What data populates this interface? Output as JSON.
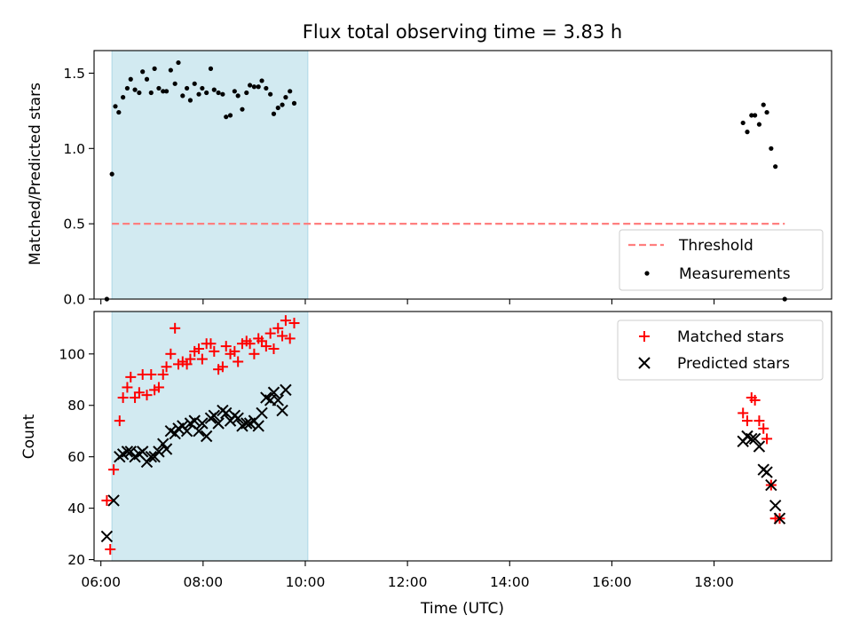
{
  "chart_data": {
    "title": "Flux total observing time = 3.83 h",
    "type": "scatter",
    "xlabel": "Time (UTC)",
    "x_ticks": [
      "06:00",
      "08:00",
      "10:00",
      "12:00",
      "14:00",
      "16:00",
      "18:00"
    ],
    "xlim": [
      "05:52",
      "20:18"
    ],
    "shaded_interval": {
      "start": "06:13",
      "end": "10:03",
      "color": "#add8e6"
    },
    "panels": [
      {
        "name": "ratio",
        "ylabel": "Matched/Predicted stars",
        "ylim": [
          0,
          1.65
        ],
        "y_ticks": [
          0.0,
          0.5,
          1.0,
          1.5
        ],
        "y_tick_labels": [
          "0.0",
          "0.5",
          "1.0",
          "1.5"
        ],
        "legend_position": "lower-right",
        "threshold": {
          "label": "Threshold",
          "value": 0.5,
          "x_start": "06:13",
          "x_end": "19:23",
          "color": "#ff7f7f"
        },
        "measurements": {
          "label": "Measurements",
          "color": "#000000",
          "points": [
            [
              "06:07",
              0.0
            ],
            [
              "06:13",
              0.83
            ],
            [
              "06:17",
              1.28
            ],
            [
              "06:21",
              1.24
            ],
            [
              "06:26",
              1.34
            ],
            [
              "06:31",
              1.4
            ],
            [
              "06:35",
              1.46
            ],
            [
              "06:40",
              1.39
            ],
            [
              "06:45",
              1.37
            ],
            [
              "06:49",
              1.51
            ],
            [
              "06:54",
              1.46
            ],
            [
              "06:59",
              1.37
            ],
            [
              "07:03",
              1.53
            ],
            [
              "07:08",
              1.4
            ],
            [
              "07:13",
              1.38
            ],
            [
              "07:17",
              1.38
            ],
            [
              "07:22",
              1.52
            ],
            [
              "07:27",
              1.43
            ],
            [
              "07:31",
              1.57
            ],
            [
              "07:36",
              1.35
            ],
            [
              "07:41",
              1.4
            ],
            [
              "07:45",
              1.32
            ],
            [
              "07:50",
              1.43
            ],
            [
              "07:55",
              1.36
            ],
            [
              "07:59",
              1.4
            ],
            [
              "08:04",
              1.37
            ],
            [
              "08:09",
              1.53
            ],
            [
              "08:13",
              1.39
            ],
            [
              "08:18",
              1.37
            ],
            [
              "08:23",
              1.36
            ],
            [
              "08:27",
              1.21
            ],
            [
              "08:32",
              1.22
            ],
            [
              "08:37",
              1.38
            ],
            [
              "08:41",
              1.35
            ],
            [
              "08:46",
              1.26
            ],
            [
              "08:51",
              1.37
            ],
            [
              "08:55",
              1.42
            ],
            [
              "09:00",
              1.41
            ],
            [
              "09:05",
              1.41
            ],
            [
              "09:09",
              1.45
            ],
            [
              "09:14",
              1.4
            ],
            [
              "09:19",
              1.36
            ],
            [
              "09:23",
              1.23
            ],
            [
              "09:28",
              1.27
            ],
            [
              "09:33",
              1.29
            ],
            [
              "09:37",
              1.34
            ],
            [
              "09:42",
              1.38
            ],
            [
              "09:47",
              1.3
            ],
            [
              "18:34",
              1.17
            ],
            [
              "18:39",
              1.11
            ],
            [
              "18:44",
              1.22
            ],
            [
              "18:48",
              1.22
            ],
            [
              "18:53",
              1.16
            ],
            [
              "18:58",
              1.29
            ],
            [
              "19:02",
              1.24
            ],
            [
              "19:07",
              1.0
            ],
            [
              "19:12",
              0.88
            ],
            [
              "19:23",
              0.0
            ]
          ]
        }
      },
      {
        "name": "counts",
        "ylabel": "Count",
        "ylim": [
          19.5,
          116.5
        ],
        "y_ticks": [
          20,
          40,
          60,
          80,
          100
        ],
        "y_tick_labels": [
          "20",
          "40",
          "60",
          "80",
          "100"
        ],
        "legend_position": "upper-right",
        "series": [
          {
            "name": "Matched stars",
            "marker": "plus",
            "color": "#ff0000",
            "points": [
              [
                "06:07",
                43
              ],
              [
                "06:11",
                24
              ],
              [
                "06:15",
                55
              ],
              [
                "06:22",
                74
              ],
              [
                "06:26",
                83
              ],
              [
                "06:31",
                87
              ],
              [
                "06:35",
                91
              ],
              [
                "06:40",
                83
              ],
              [
                "06:45",
                85
              ],
              [
                "06:49",
                92
              ],
              [
                "06:54",
                84
              ],
              [
                "06:59",
                92
              ],
              [
                "07:03",
                86
              ],
              [
                "07:08",
                87
              ],
              [
                "07:13",
                92
              ],
              [
                "07:17",
                95
              ],
              [
                "07:22",
                100
              ],
              [
                "07:27",
                110
              ],
              [
                "07:31",
                96
              ],
              [
                "07:36",
                97
              ],
              [
                "07:41",
                96
              ],
              [
                "07:45",
                98
              ],
              [
                "07:50",
                101
              ],
              [
                "07:55",
                102
              ],
              [
                "07:59",
                98
              ],
              [
                "08:04",
                104
              ],
              [
                "08:09",
                104
              ],
              [
                "08:13",
                101
              ],
              [
                "08:18",
                94
              ],
              [
                "08:23",
                95
              ],
              [
                "08:27",
                103
              ],
              [
                "08:32",
                100
              ],
              [
                "08:37",
                101
              ],
              [
                "08:41",
                97
              ],
              [
                "08:46",
                104
              ],
              [
                "08:51",
                105
              ],
              [
                "08:55",
                104
              ],
              [
                "09:00",
                100
              ],
              [
                "09:05",
                106
              ],
              [
                "09:09",
                105
              ],
              [
                "09:14",
                103
              ],
              [
                "09:19",
                108
              ],
              [
                "09:23",
                102
              ],
              [
                "09:28",
                110
              ],
              [
                "09:33",
                107
              ],
              [
                "09:37",
                113
              ],
              [
                "09:42",
                106
              ],
              [
                "09:47",
                112
              ],
              [
                "18:34",
                77
              ],
              [
                "18:39",
                74
              ],
              [
                "18:44",
                83
              ],
              [
                "18:48",
                82
              ],
              [
                "18:53",
                74
              ],
              [
                "18:58",
                71
              ],
              [
                "19:02",
                67
              ],
              [
                "19:07",
                49
              ],
              [
                "19:12",
                36
              ],
              [
                "19:17",
                36
              ]
            ]
          },
          {
            "name": "Predicted stars",
            "marker": "x",
            "color": "#000000",
            "points": [
              [
                "06:07",
                29
              ],
              [
                "06:15",
                43
              ],
              [
                "06:22",
                60
              ],
              [
                "06:26",
                61
              ],
              [
                "06:31",
                62
              ],
              [
                "06:35",
                62
              ],
              [
                "06:40",
                60
              ],
              [
                "06:45",
                61
              ],
              [
                "06:49",
                62
              ],
              [
                "06:54",
                58
              ],
              [
                "06:59",
                60
              ],
              [
                "07:03",
                60
              ],
              [
                "07:08",
                62
              ],
              [
                "07:13",
                65
              ],
              [
                "07:17",
                63
              ],
              [
                "07:22",
                70
              ],
              [
                "07:27",
                69
              ],
              [
                "07:31",
                71
              ],
              [
                "07:36",
                72
              ],
              [
                "07:41",
                70
              ],
              [
                "07:45",
                73
              ],
              [
                "07:50",
                74
              ],
              [
                "07:55",
                70
              ],
              [
                "07:59",
                73
              ],
              [
                "08:04",
                68
              ],
              [
                "08:09",
                75
              ],
              [
                "08:13",
                76
              ],
              [
                "08:18",
                73
              ],
              [
                "08:23",
                78
              ],
              [
                "08:27",
                77
              ],
              [
                "08:32",
                74
              ],
              [
                "08:37",
                76
              ],
              [
                "08:41",
                75
              ],
              [
                "08:46",
                72
              ],
              [
                "08:51",
                73
              ],
              [
                "08:55",
                73
              ],
              [
                "09:00",
                74
              ],
              [
                "09:05",
                72
              ],
              [
                "09:09",
                77
              ],
              [
                "09:14",
                83
              ],
              [
                "09:19",
                82
              ],
              [
                "09:23",
                85
              ],
              [
                "09:28",
                82
              ],
              [
                "09:33",
                78
              ],
              [
                "09:37",
                86
              ],
              [
                "18:34",
                66
              ],
              [
                "18:39",
                68
              ],
              [
                "18:44",
                67
              ],
              [
                "18:48",
                67
              ],
              [
                "18:53",
                64
              ],
              [
                "18:58",
                55
              ],
              [
                "19:02",
                54
              ],
              [
                "19:07",
                49
              ],
              [
                "19:12",
                41
              ],
              [
                "19:17",
                36
              ]
            ]
          }
        ]
      }
    ]
  }
}
